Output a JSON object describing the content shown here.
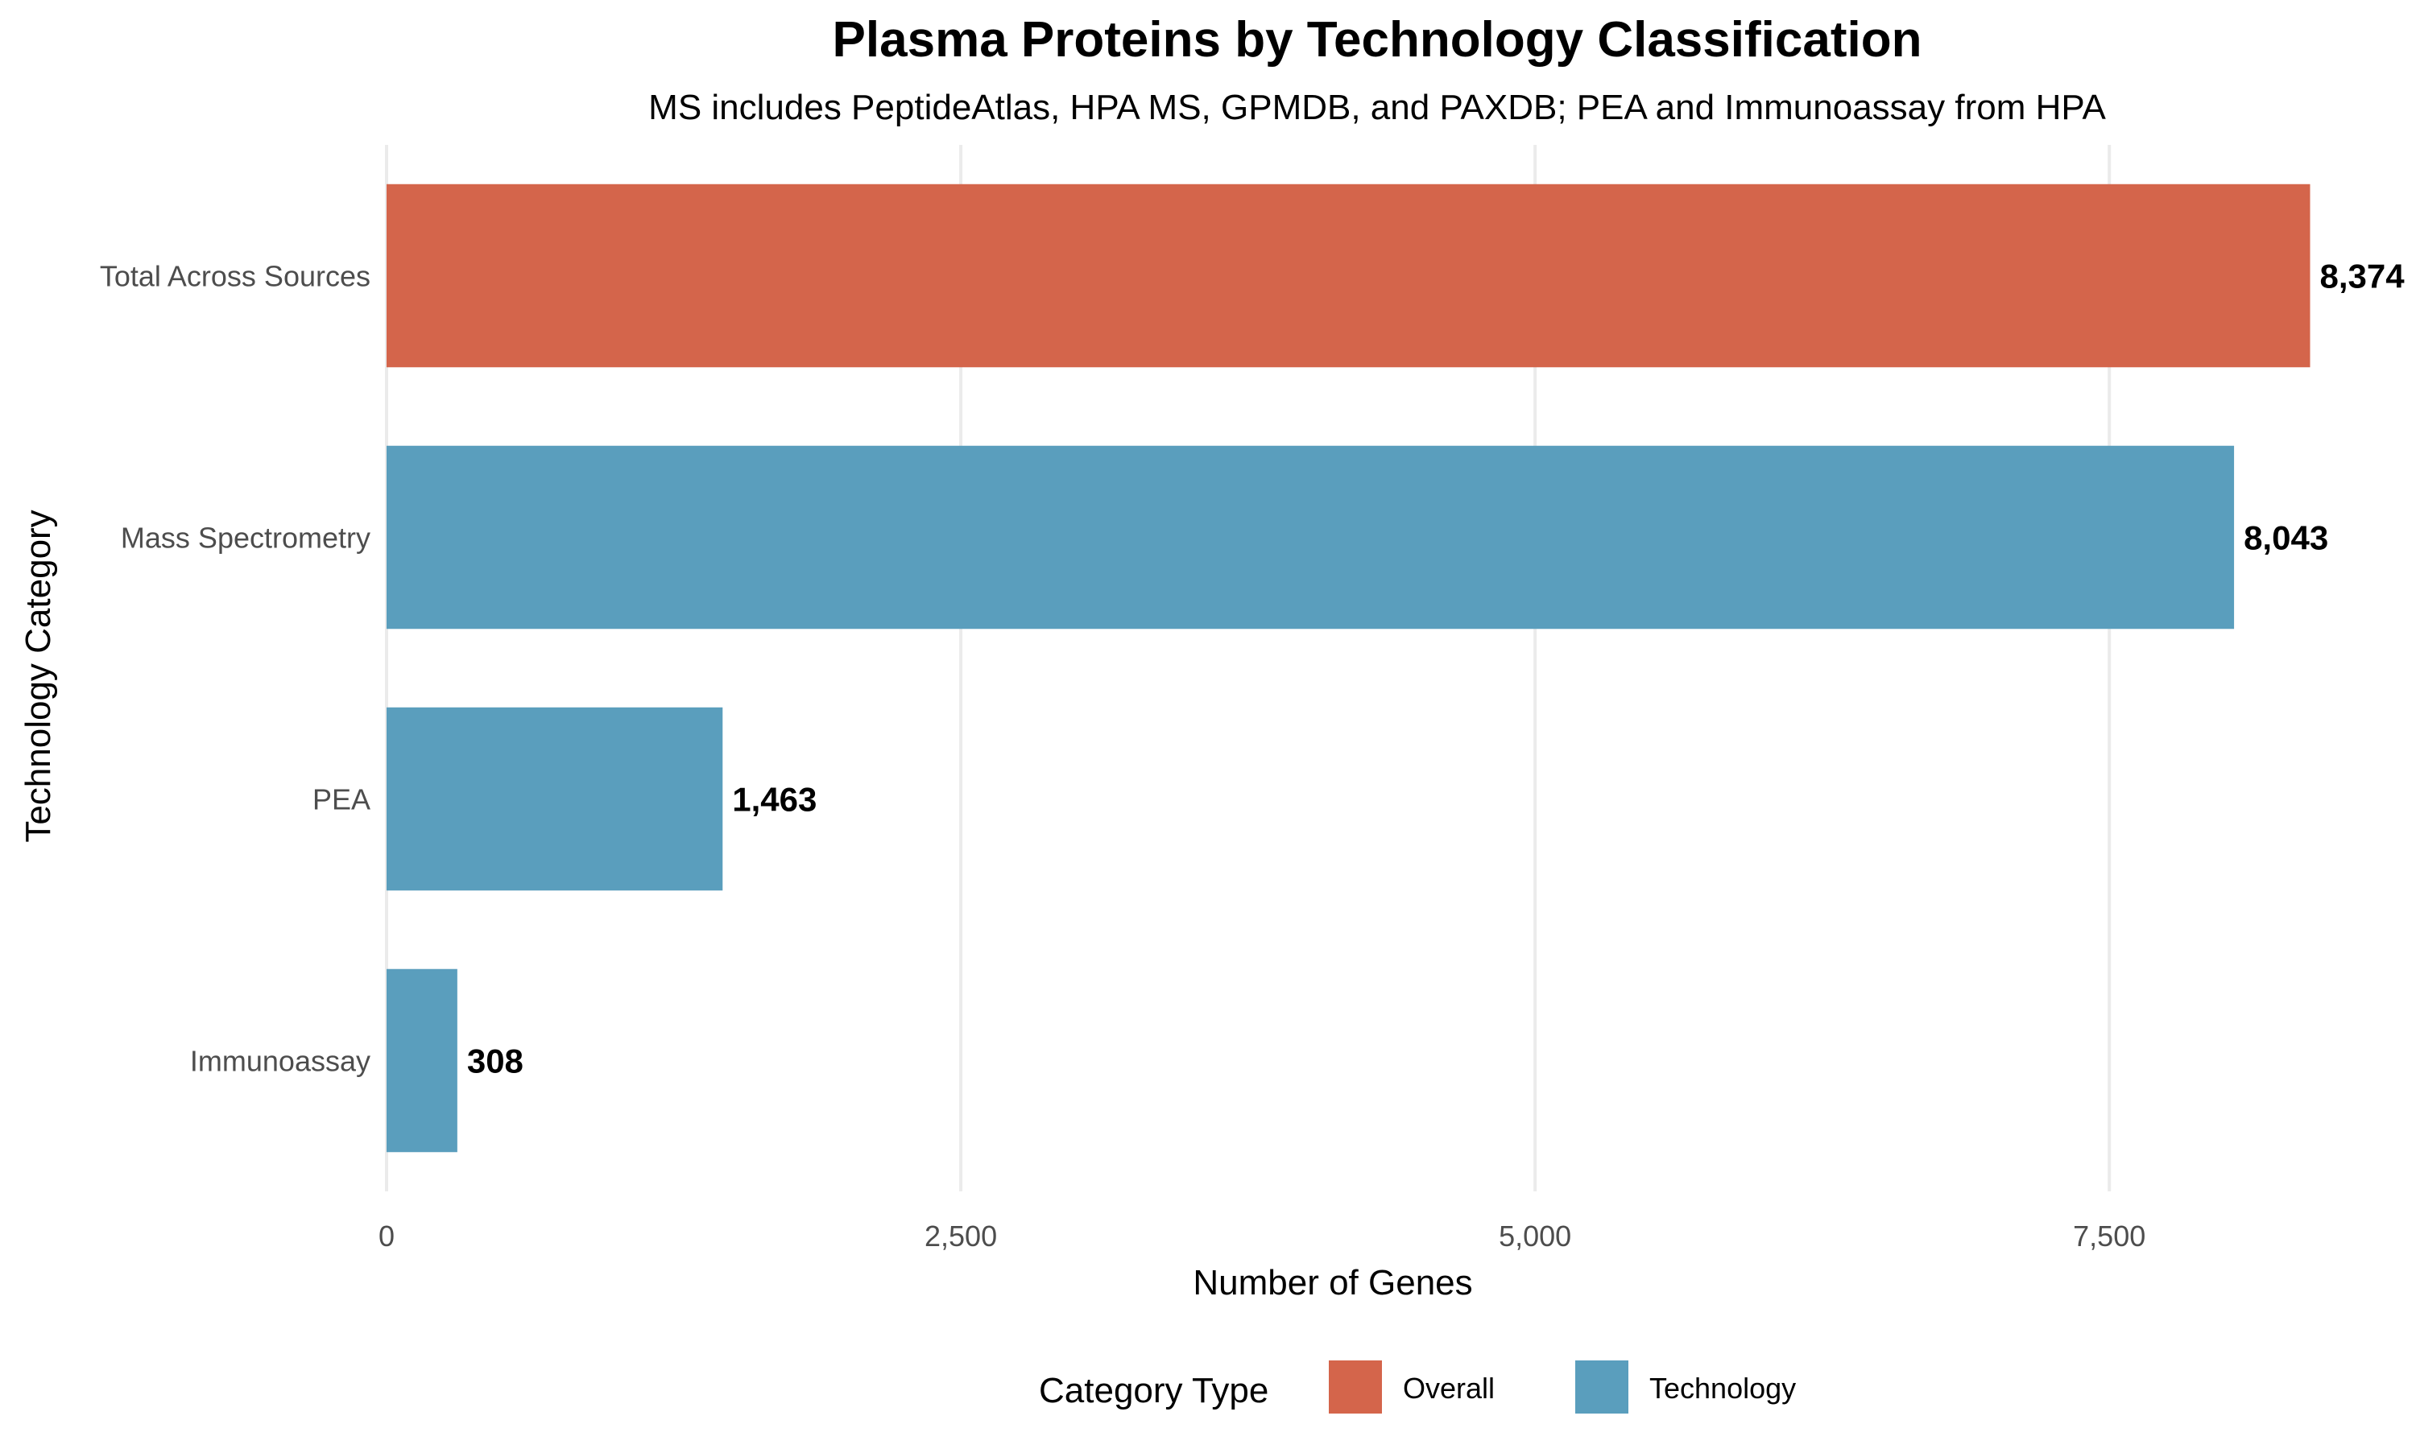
{
  "chart_data": {
    "type": "bar",
    "orientation": "horizontal",
    "title": "Plasma Proteins by Technology Classification",
    "subtitle": "MS includes PeptideAtlas, HPA MS, GPMDB, and PAXDB; PEA and Immunoassay from HPA",
    "xlabel": "Number of Genes",
    "ylabel": "Technology Category",
    "xlim": [
      0,
      8800
    ],
    "xticks": [
      0,
      2500,
      5000,
      7500
    ],
    "xtick_labels": [
      "0",
      "2,500",
      "5,000",
      "7,500"
    ],
    "grid": true,
    "categories": [
      "Total Across Sources",
      "Mass Spectrometry",
      "PEA",
      "Immunoassay"
    ],
    "values": [
      8374,
      8043,
      1463,
      308
    ],
    "value_labels": [
      "8,374",
      "8,043",
      "1,463",
      "308"
    ],
    "category_types": [
      "Overall",
      "Technology",
      "Technology",
      "Technology"
    ],
    "legend": {
      "title": "Category Type",
      "placement": "bottom",
      "entries": [
        {
          "label": "Overall",
          "color": "#d4654b"
        },
        {
          "label": "Technology",
          "color": "#5a9ebd"
        }
      ]
    }
  }
}
